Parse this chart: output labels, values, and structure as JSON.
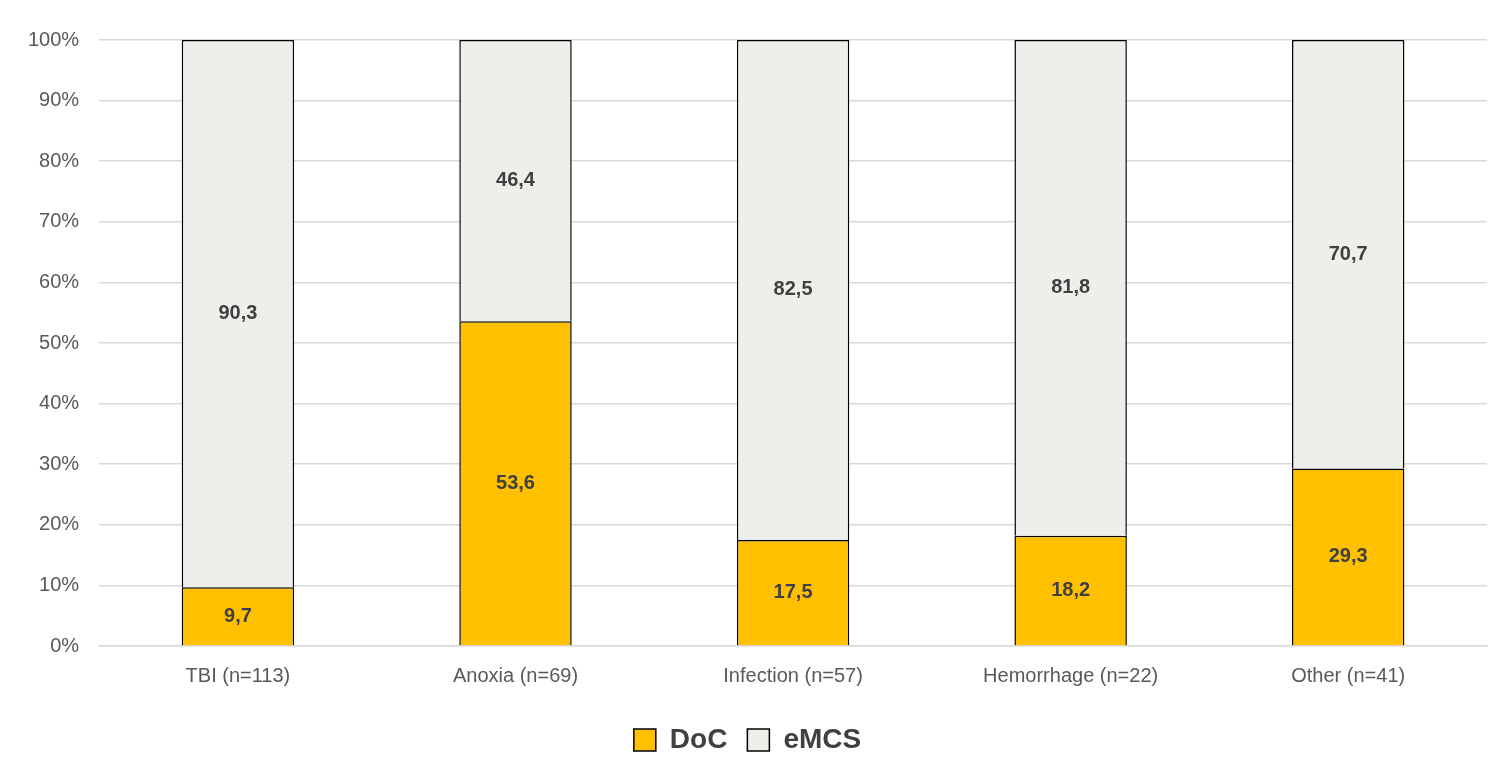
{
  "chart_data": {
    "type": "bar",
    "stacked": true,
    "categories": [
      "TBI (n=113)",
      "Anoxia (n=69)",
      "Infection (n=57)",
      "Hemorrhage (n=22)",
      "Other (n=41)"
    ],
    "series": [
      {
        "name": "DoC",
        "color": "#ffc000",
        "values": [
          9.7,
          53.6,
          17.5,
          18.2,
          29.3
        ],
        "value_labels": [
          "9,7",
          "53,6",
          "17,5",
          "18,2",
          "29,3"
        ]
      },
      {
        "name": "eMCS",
        "color": "#eeefea",
        "values": [
          90.3,
          46.4,
          82.5,
          81.8,
          70.7
        ],
        "value_labels": [
          "90,3",
          "46,4",
          "82,5",
          "81,8",
          "70,7"
        ]
      }
    ],
    "ylim": [
      0,
      100
    ],
    "yticks": [
      {
        "value": 0,
        "label": "0%"
      },
      {
        "value": 10,
        "label": "10%"
      },
      {
        "value": 20,
        "label": "20%"
      },
      {
        "value": 30,
        "label": "30%"
      },
      {
        "value": 40,
        "label": "40%"
      },
      {
        "value": 50,
        "label": "50%"
      },
      {
        "value": 60,
        "label": "60%"
      },
      {
        "value": 70,
        "label": "70%"
      },
      {
        "value": 80,
        "label": "80%"
      },
      {
        "value": 90,
        "label": "90%"
      },
      {
        "value": 100,
        "label": "100%"
      }
    ],
    "grid": "y",
    "legend": "bottom"
  }
}
